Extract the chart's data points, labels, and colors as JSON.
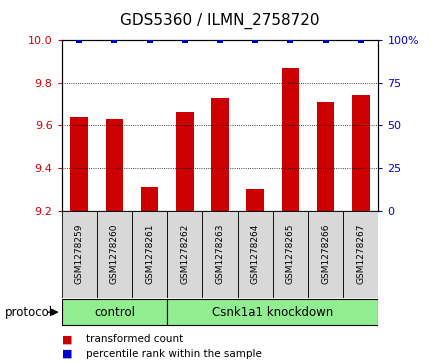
{
  "title": "GDS5360 / ILMN_2758720",
  "samples": [
    "GSM1278259",
    "GSM1278260",
    "GSM1278261",
    "GSM1278262",
    "GSM1278263",
    "GSM1278264",
    "GSM1278265",
    "GSM1278266",
    "GSM1278267"
  ],
  "bar_values": [
    9.64,
    9.63,
    9.31,
    9.66,
    9.73,
    9.3,
    9.87,
    9.71,
    9.74
  ],
  "percentile_values": [
    100,
    100,
    100,
    100,
    100,
    100,
    100,
    100,
    100
  ],
  "ylim_left": [
    9.2,
    10.0
  ],
  "ylim_right": [
    0,
    100
  ],
  "yticks_left": [
    9.2,
    9.4,
    9.6,
    9.8,
    10.0
  ],
  "yticks_right": [
    0,
    25,
    50,
    75,
    100
  ],
  "bar_color": "#cc0000",
  "dot_color": "#0000cc",
  "protocol_groups": [
    {
      "label": "control",
      "start": 0,
      "end": 3,
      "color": "#90ee90"
    },
    {
      "label": "Csnk1a1 knockdown",
      "start": 3,
      "end": 9,
      "color": "#90ee90"
    }
  ],
  "protocol_label": "protocol",
  "legend_items": [
    {
      "label": "transformed count",
      "color": "#cc0000"
    },
    {
      "label": "percentile rank within the sample",
      "color": "#0000cc"
    }
  ],
  "title_fontsize": 11,
  "tick_fontsize": 8,
  "sample_fontsize": 6.5,
  "proto_fontsize": 8.5,
  "legend_fontsize": 7.5
}
